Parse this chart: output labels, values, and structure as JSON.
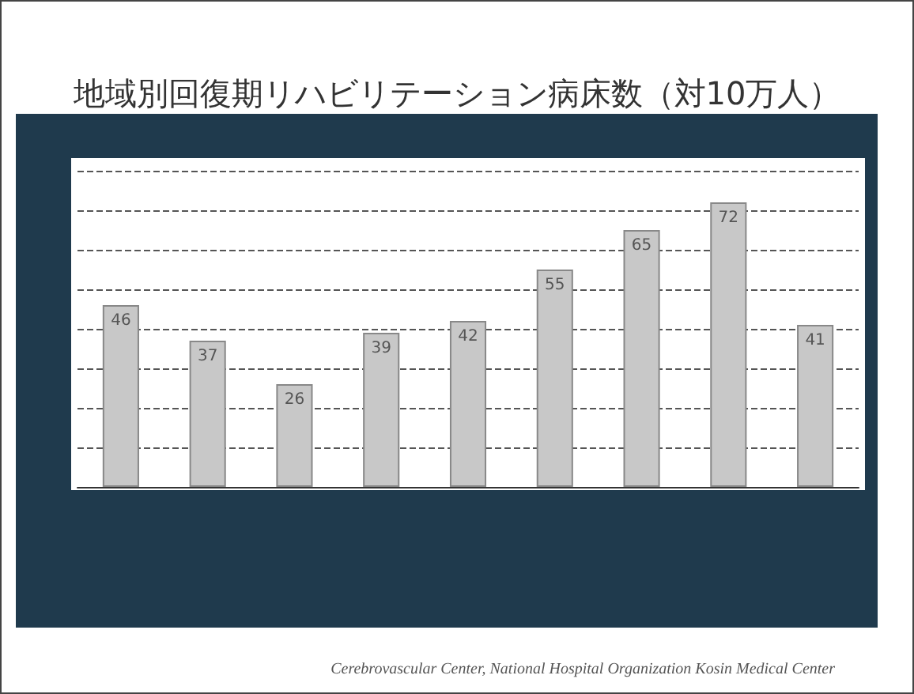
{
  "chart_data": {
    "type": "bar",
    "title": "地域別回復期リハビリテーション病床数（対10万人）",
    "categories": [
      null,
      null,
      null,
      null,
      null,
      null,
      null,
      null,
      null
    ],
    "values": [
      46,
      37,
      26,
      39,
      42,
      55,
      65,
      72,
      41
    ],
    "color": "#c8c8c8",
    "data_labels": true,
    "grid": "y",
    "tick_labels": false,
    "ylim": [
      0,
      80
    ],
    "yticks": [
      {
        "value": 0,
        "label": null
      },
      {
        "value": 10,
        "label": null
      },
      {
        "value": 20,
        "label": null
      },
      {
        "value": 30,
        "label": null
      },
      {
        "value": 40,
        "label": null
      },
      {
        "value": 50,
        "label": null
      },
      {
        "value": 60,
        "label": null
      },
      {
        "value": 70,
        "label": null
      },
      {
        "value": 80,
        "label": null
      }
    ],
    "annotations": [
      "Cerebrovascular Center, National Hospital Organization Kosin Medical Center"
    ]
  }
}
